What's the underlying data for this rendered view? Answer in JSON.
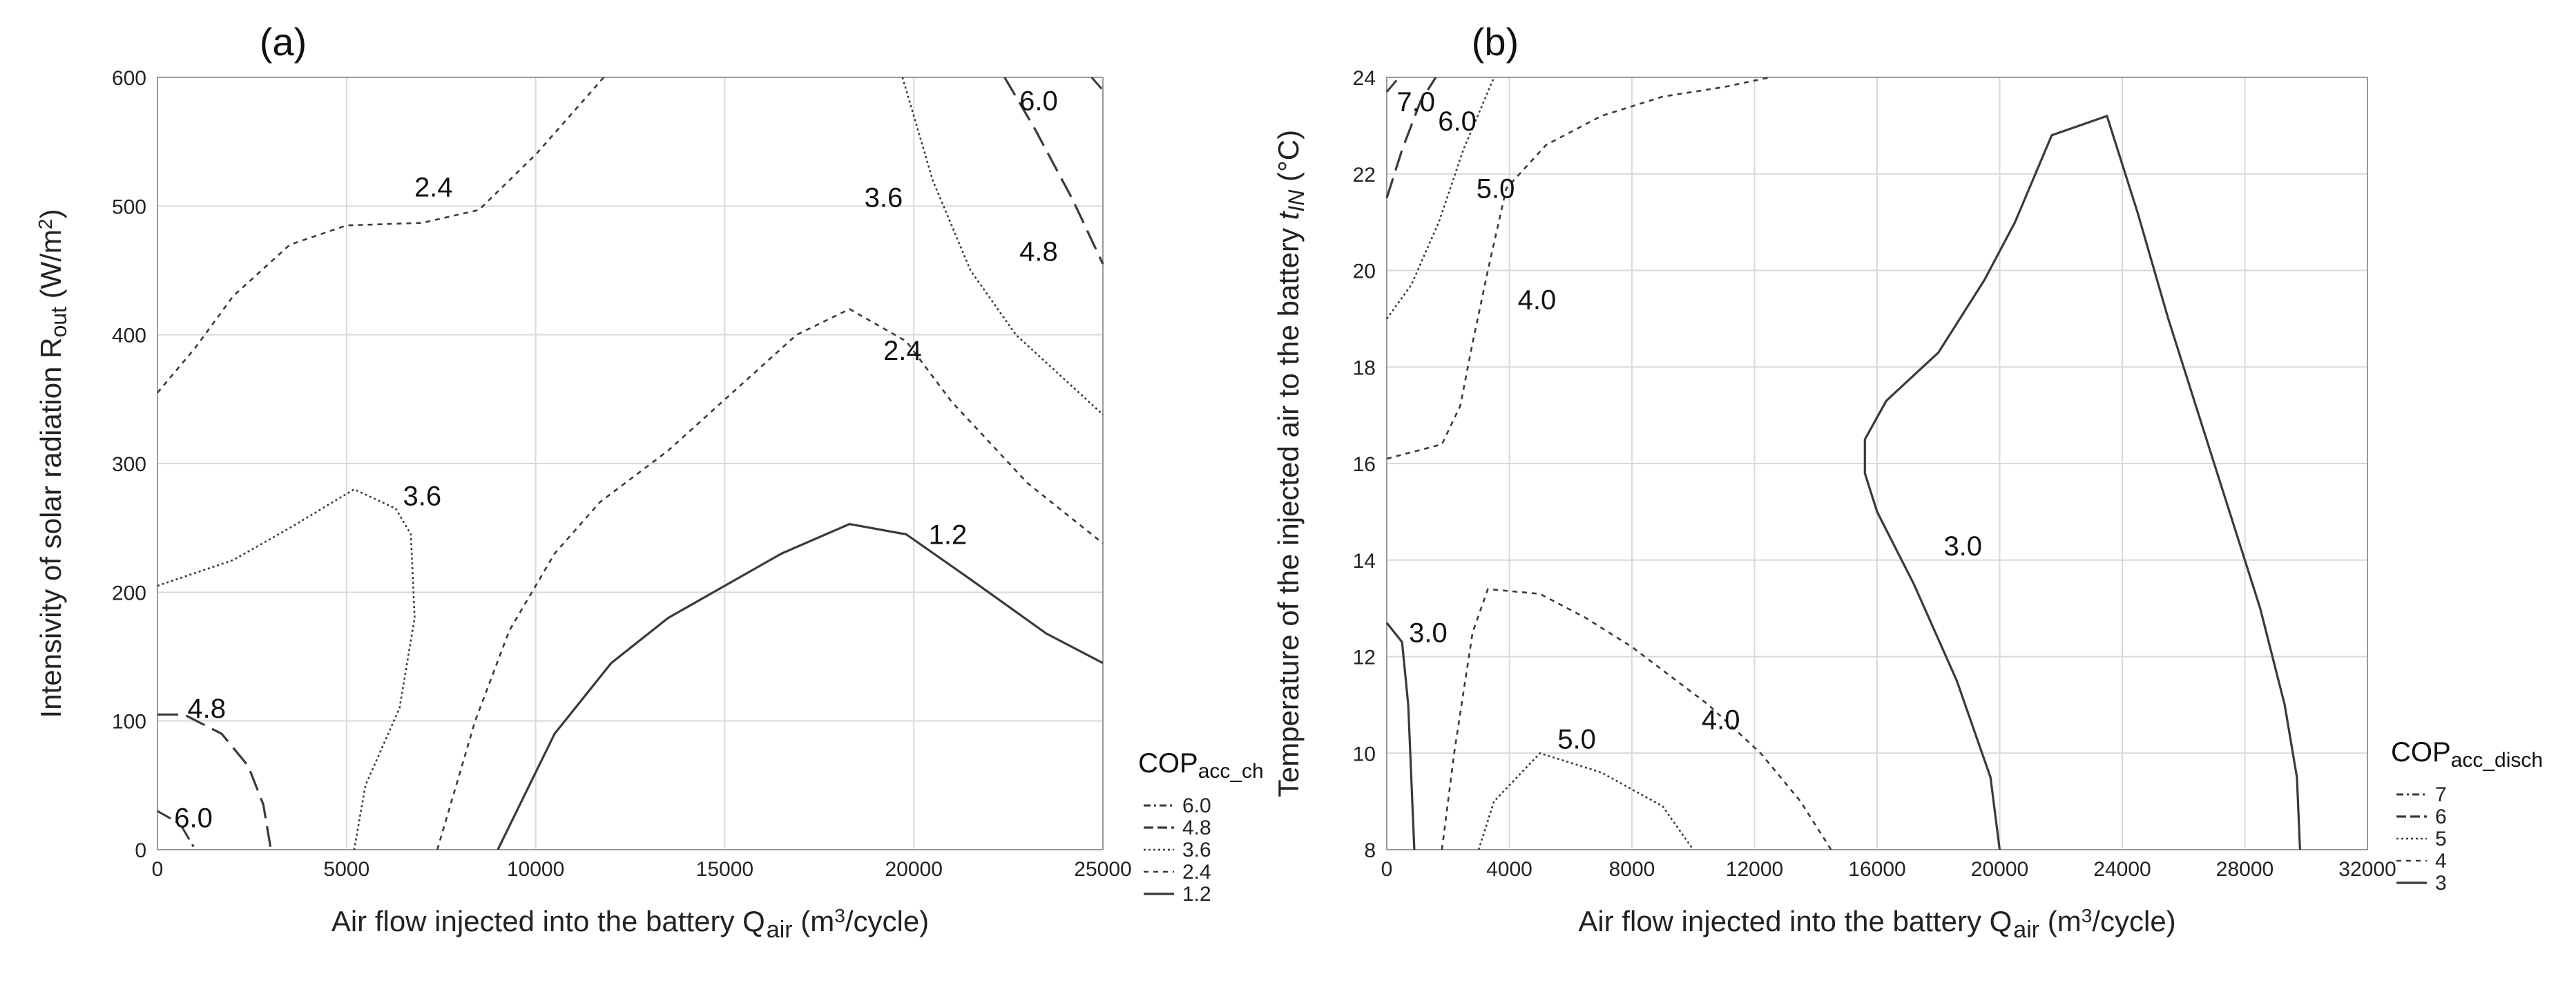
{
  "chart_data": [
    {
      "id": "a",
      "type": "contour",
      "panel_label": "(a)",
      "xlabel": "Air flow injected into the battery Q",
      "xlabel_sub": "air",
      "xlabel_unit_pre": " (m",
      "xlabel_unit_sup": "3",
      "xlabel_unit_post": "/cycle)",
      "ylabel": "Intensivity of solar radiation R",
      "ylabel_sub": "out",
      "ylabel_unit_pre": " (W/m",
      "ylabel_unit_sup": "2",
      "ylabel_unit_post": ")",
      "xlim": [
        0,
        25000
      ],
      "ylim": [
        0,
        600
      ],
      "xticks": [
        0,
        5000,
        10000,
        15000,
        20000,
        25000
      ],
      "xtick_labels": [
        "0",
        "5000",
        "10000",
        "15000",
        "20000",
        "25000"
      ],
      "yticks": [
        0,
        100,
        200,
        300,
        400,
        500,
        600
      ],
      "ytick_labels": [
        "0",
        "100",
        "200",
        "300",
        "400",
        "500",
        "600"
      ],
      "legend": {
        "title": "COP",
        "title_sub": "acc_ch",
        "entries": [
          {
            "label": "6.0",
            "style": "dashdot"
          },
          {
            "label": "4.8",
            "style": "longdash"
          },
          {
            "label": "3.6",
            "style": "dotted"
          },
          {
            "label": "2.4",
            "style": "shortdash"
          },
          {
            "label": "1.2",
            "style": "solid"
          }
        ]
      },
      "contours": [
        {
          "level": "1.2",
          "style": "solid",
          "points": [
            [
              9000,
              0
            ],
            [
              10500,
              90
            ],
            [
              12000,
              145
            ],
            [
              13500,
              180
            ],
            [
              15000,
              205
            ],
            [
              16500,
              230
            ],
            [
              18300,
              253
            ],
            [
              19800,
              245
            ],
            [
              21500,
              210
            ],
            [
              23500,
              168
            ],
            [
              25000,
              145
            ]
          ]
        },
        {
          "level": "2.4",
          "style": "shortdash",
          "points": [
            [
              7400,
              0
            ],
            [
              8400,
              100
            ],
            [
              9300,
              170
            ],
            [
              10500,
              230
            ],
            [
              11700,
              270
            ],
            [
              13500,
              310
            ],
            [
              15200,
              355
            ],
            [
              16900,
              400
            ],
            [
              18300,
              420
            ],
            [
              19800,
              395
            ],
            [
              21000,
              348
            ],
            [
              23000,
              285
            ],
            [
              25000,
              238
            ]
          ]
        },
        {
          "level": "2.4",
          "style": "shortdash",
          "points": [
            [
              0,
              355
            ],
            [
              1000,
              390
            ],
            [
              2000,
              430
            ],
            [
              3500,
              470
            ],
            [
              5000,
              485
            ],
            [
              7000,
              487
            ],
            [
              8500,
              497
            ],
            [
              10000,
              540
            ],
            [
              11800,
              600
            ]
          ]
        },
        {
          "level": "3.6",
          "style": "dotted",
          "points": [
            [
              0,
              205
            ],
            [
              1000,
              215
            ],
            [
              2000,
              225
            ],
            [
              3500,
              250
            ],
            [
              5200,
              280
            ],
            [
              6300,
              265
            ],
            [
              6700,
              245
            ],
            [
              6800,
              180
            ],
            [
              6400,
              110
            ],
            [
              5500,
              50
            ],
            [
              5200,
              0
            ]
          ]
        },
        {
          "level": "3.6",
          "style": "dotted",
          "points": [
            [
              19700,
              600
            ],
            [
              20500,
              520
            ],
            [
              21500,
              450
            ],
            [
              22700,
              400
            ],
            [
              24000,
              365
            ],
            [
              25000,
              338
            ]
          ]
        },
        {
          "level": "4.8",
          "style": "longdash",
          "points": [
            [
              0,
              105
            ],
            [
              700,
              105
            ],
            [
              1700,
              90
            ],
            [
              2400,
              65
            ],
            [
              2800,
              35
            ],
            [
              3000,
              0
            ]
          ]
        },
        {
          "level": "4.8",
          "style": "longdash",
          "points": [
            [
              22400,
              600
            ],
            [
              23200,
              560
            ],
            [
              24200,
              505
            ],
            [
              25000,
              455
            ]
          ]
        },
        {
          "level": "6.0",
          "style": "dashdot",
          "points": [
            [
              0,
              30
            ],
            [
              600,
              20
            ],
            [
              1000,
              0
            ]
          ]
        },
        {
          "level": "6.0",
          "style": "dashdot",
          "points": [
            [
              24700,
              600
            ],
            [
              25000,
              590
            ]
          ]
        }
      ],
      "contour_labels": [
        {
          "text": "2.4",
          "x": 7300,
          "y": 515
        },
        {
          "text": "2.4",
          "x": 19700,
          "y": 388
        },
        {
          "text": "3.6",
          "x": 19200,
          "y": 507
        },
        {
          "text": "3.6",
          "x": 7000,
          "y": 275
        },
        {
          "text": "4.8",
          "x": 23300,
          "y": 465
        },
        {
          "text": "6.0",
          "x": 23300,
          "y": 582
        },
        {
          "text": "1.2",
          "x": 20900,
          "y": 245
        },
        {
          "text": "4.8",
          "x": 1300,
          "y": 110
        },
        {
          "text": "6.0",
          "x": 950,
          "y": 25
        }
      ]
    },
    {
      "id": "b",
      "type": "contour",
      "panel_label": "(b)",
      "xlabel": "Air flow injected into the battery Q",
      "xlabel_sub": "air",
      "xlabel_unit_pre": " (m",
      "xlabel_unit_sup": "3",
      "xlabel_unit_post": "/cycle)",
      "ylabel": "Temperature of the injected air to the battery ",
      "ylabel_sym": "t",
      "ylabel_sub": "IN",
      "ylabel_unit_post": " (°C)",
      "xlim": [
        0,
        32000
      ],
      "ylim": [
        8,
        24
      ],
      "xticks": [
        0,
        4000,
        8000,
        12000,
        16000,
        20000,
        24000,
        28000,
        32000
      ],
      "xtick_labels": [
        "0",
        "4000",
        "8000",
        "12000",
        "16000",
        "20000",
        "24000",
        "28000",
        "32000"
      ],
      "yticks": [
        8,
        10,
        12,
        14,
        16,
        18,
        20,
        22,
        24
      ],
      "ytick_labels": [
        "8",
        "10",
        "12",
        "14",
        "16",
        "18",
        "20",
        "22",
        "24"
      ],
      "legend": {
        "title": "COP",
        "title_sub": "acc_disch",
        "entries": [
          {
            "label": "7",
            "style": "dashdot"
          },
          {
            "label": "6",
            "style": "longdash"
          },
          {
            "label": "5",
            "style": "dotted"
          },
          {
            "label": "4",
            "style": "shortdash"
          },
          {
            "label": "3",
            "style": "solid"
          }
        ]
      },
      "contours": [
        {
          "level": "3.0",
          "style": "solid",
          "points": [
            [
              20000,
              8
            ],
            [
              19700,
              9.5
            ],
            [
              18600,
              11.5
            ],
            [
              17200,
              13.5
            ],
            [
              16000,
              15
            ],
            [
              15600,
              15.8
            ],
            [
              15600,
              16.5
            ],
            [
              16300,
              17.3
            ],
            [
              18000,
              18.3
            ],
            [
              19500,
              19.8
            ],
            [
              20500,
              21
            ],
            [
              21700,
              22.8
            ],
            [
              23500,
              23.2
            ],
            [
              24500,
              21.2
            ],
            [
              25500,
              19
            ],
            [
              26500,
              17
            ],
            [
              27500,
              15
            ],
            [
              28500,
              13
            ],
            [
              29300,
              11
            ],
            [
              29700,
              9.5
            ],
            [
              29800,
              8
            ]
          ]
        },
        {
          "level": "3.0",
          "style": "solid",
          "points": [
            [
              0,
              12.7
            ],
            [
              500,
              12.3
            ],
            [
              700,
              11
            ],
            [
              800,
              9.5
            ],
            [
              900,
              8
            ]
          ]
        },
        {
          "level": "4.0",
          "style": "shortdash",
          "points": [
            [
              1800,
              8
            ],
            [
              2200,
              10
            ],
            [
              2800,
              12.5
            ],
            [
              3300,
              13.4
            ],
            [
              5000,
              13.3
            ],
            [
              6500,
              12.8
            ],
            [
              8000,
              12.2
            ],
            [
              10500,
              11
            ],
            [
              12200,
              10
            ],
            [
              13500,
              9
            ],
            [
              14500,
              8
            ]
          ]
        },
        {
          "level": "4.0",
          "style": "shortdash",
          "points": [
            [
              0,
              16.1
            ],
            [
              1800,
              16.4
            ],
            [
              2400,
              17.2
            ],
            [
              2800,
              18.5
            ],
            [
              3300,
              20
            ],
            [
              3900,
              21.7
            ],
            [
              5200,
              22.6
            ],
            [
              7000,
              23.2
            ],
            [
              9000,
              23.6
            ],
            [
              11000,
              23.8
            ],
            [
              12500,
              24
            ]
          ]
        },
        {
          "level": "5.0",
          "style": "dotted",
          "points": [
            [
              3000,
              8
            ],
            [
              3500,
              9
            ],
            [
              5000,
              10
            ],
            [
              7000,
              9.6
            ],
            [
              9000,
              8.9
            ],
            [
              10000,
              8
            ]
          ]
        },
        {
          "level": "5.0",
          "style": "dotted",
          "points": [
            [
              0,
              19
            ],
            [
              800,
              19.7
            ],
            [
              1700,
              21
            ],
            [
              2500,
              22.5
            ],
            [
              3500,
              24
            ]
          ]
        },
        {
          "level": "6.0",
          "style": "longdash",
          "points": [
            [
              0,
              21.5
            ],
            [
              500,
              22.5
            ],
            [
              1100,
              23.5
            ],
            [
              1600,
              24
            ]
          ]
        },
        {
          "level": "7.0",
          "style": "dashdot",
          "points": [
            [
              0,
              23.7
            ],
            [
              400,
              24
            ]
          ]
        }
      ],
      "contour_labels": [
        {
          "text": "7.0",
          "x": 950,
          "y": 23.5
        },
        {
          "text": "6.0",
          "x": 2300,
          "y": 23.1
        },
        {
          "text": "5.0",
          "x": 3550,
          "y": 21.7
        },
        {
          "text": "4.0",
          "x": 4900,
          "y": 19.4
        },
        {
          "text": "4.0",
          "x": 10900,
          "y": 10.7
        },
        {
          "text": "5.0",
          "x": 6200,
          "y": 10.3
        },
        {
          "text": "3.0",
          "x": 1350,
          "y": 12.5
        },
        {
          "text": "3.0",
          "x": 18800,
          "y": 14.3
        }
      ]
    }
  ]
}
